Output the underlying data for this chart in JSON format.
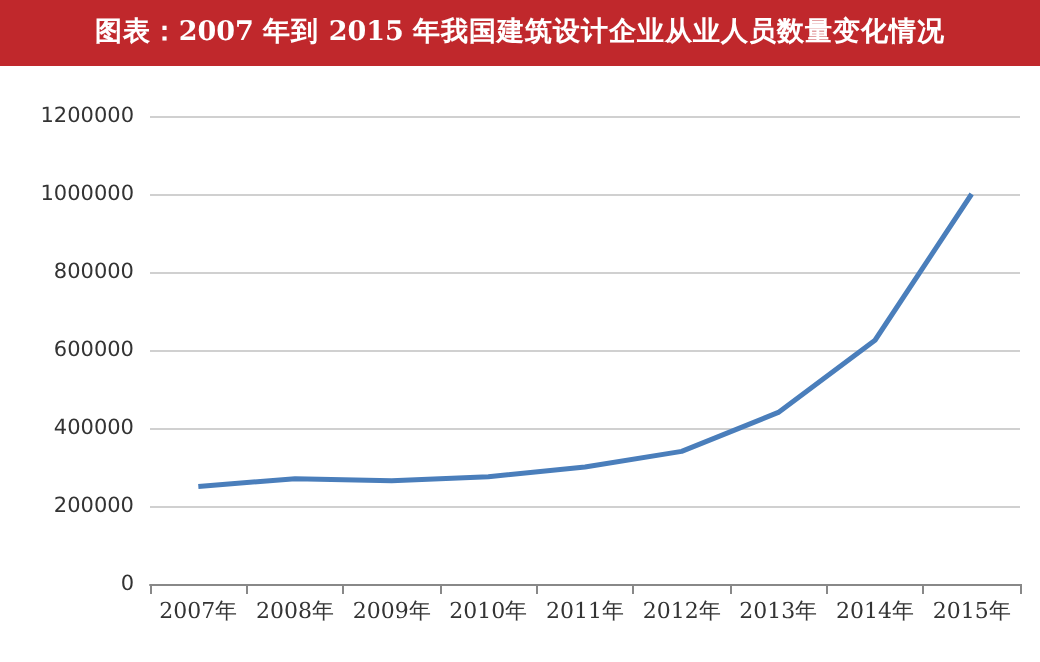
{
  "chart_data": {
    "type": "line",
    "title": "图表：2007 年到 2015 年我国建筑设计企业从业人员数量变化情况",
    "categories": [
      "2007年",
      "2008年",
      "2009年",
      "2010年",
      "2011年",
      "2012年",
      "2013年",
      "2014年",
      "2015年"
    ],
    "series": [
      {
        "color": "#4a7ebb",
        "values": [
          250000,
          270000,
          265000,
          275000,
          300000,
          340000,
          440000,
          625000,
          1000000
        ]
      }
    ],
    "ylim": [
      0,
      1200000
    ],
    "yticks": [
      0,
      200000,
      400000,
      600000,
      800000,
      1000000,
      1200000
    ],
    "grid": "y",
    "marker": "none",
    "line_style": "solid"
  }
}
